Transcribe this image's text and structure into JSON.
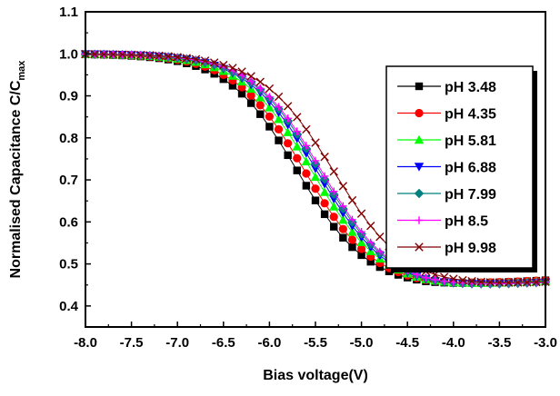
{
  "chart_data": {
    "type": "line",
    "xlabel": "Bias voltage(V)",
    "ylabel_main": "Normalised Capacitance C/C",
    "ylabel_sub": "max",
    "xlim": [
      -8.0,
      -3.0
    ],
    "ylim": [
      0.35,
      1.1
    ],
    "x_ticks": [
      "-8.0",
      "-7.5",
      "-7.0",
      "-6.5",
      "-6.0",
      "-5.5",
      "-5.0",
      "-4.5",
      "-4.0",
      "-3.5",
      "-3.0"
    ],
    "y_ticks": [
      "0.4",
      "0.5",
      "0.6",
      "0.7",
      "0.8",
      "0.9",
      "1.0",
      "1.1"
    ],
    "grid": false,
    "legend_position": "top-right",
    "series": [
      {
        "name": "pH 3.48",
        "color": "#000000",
        "marker": "square",
        "mid": -5.7,
        "width": 0.38,
        "low": 0.445
      },
      {
        "name": "pH 4.35",
        "color": "#ff0000",
        "marker": "circle",
        "mid": -5.62,
        "width": 0.38,
        "low": 0.445
      },
      {
        "name": "pH 5.81",
        "color": "#00ff00",
        "marker": "triangle-up",
        "mid": -5.54,
        "width": 0.38,
        "low": 0.443
      },
      {
        "name": "pH 6.88",
        "color": "#0000ff",
        "marker": "triangle-down",
        "mid": -5.48,
        "width": 0.38,
        "low": 0.44
      },
      {
        "name": "pH 7.99",
        "color": "#008080",
        "marker": "diamond",
        "mid": -5.45,
        "width": 0.38,
        "low": 0.44
      },
      {
        "name": "pH 8.5",
        "color": "#ff00ff",
        "marker": "plus",
        "mid": -5.43,
        "width": 0.38,
        "low": 0.44
      },
      {
        "name": "pH 9.98",
        "color": "#800000",
        "marker": "x",
        "mid": -5.3,
        "width": 0.4,
        "low": 0.44
      }
    ],
    "x_start": -8.0,
    "x_end": -3.0,
    "x_step": 0.1
  }
}
